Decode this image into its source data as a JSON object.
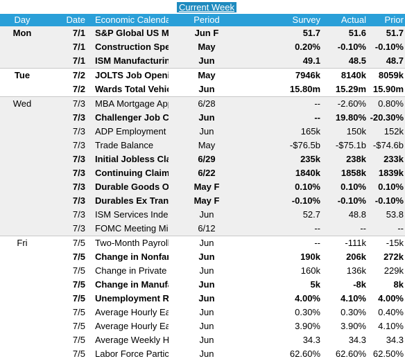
{
  "title": "Current Week",
  "headers": {
    "day": "Day",
    "date": "Date",
    "event": "Economic Calendar (Event)",
    "period": "Period",
    "survey": "Survey",
    "actual": "Actual",
    "prior": "Prior"
  },
  "rows": [
    {
      "day": "Mon",
      "date": "7/1",
      "event": "S&P Global US Manufacturing PMI",
      "period": "Jun F",
      "survey": "51.7",
      "actual": "51.6",
      "prior": "51.7"
    },
    {
      "day": "",
      "date": "7/1",
      "event": "Construction Spending MoM",
      "period": "May",
      "survey": "0.20%",
      "actual": "-0.10%",
      "prior": "-0.10%"
    },
    {
      "day": "",
      "date": "7/1",
      "event": "ISM Manufacturing",
      "period": "Jun",
      "survey": "49.1",
      "actual": "48.5",
      "prior": "48.7"
    },
    {
      "day": "Tue",
      "date": "7/2",
      "event": "JOLTS Job Openings",
      "period": "May",
      "survey": "7946k",
      "actual": "8140k",
      "prior": "8059k"
    },
    {
      "day": "",
      "date": "7/2",
      "event": "Wards Total Vehicle Sales",
      "period": "Jun",
      "survey": "15.80m",
      "actual": "15.29m",
      "prior": "15.90m"
    },
    {
      "day": "Wed",
      "date": "7/3",
      "event": "MBA Mortgage Applications",
      "period": "6/28",
      "survey": "--",
      "actual": "-2.60%",
      "prior": "0.80%"
    },
    {
      "day": "",
      "date": "7/3",
      "event": "Challenger Job Cuts YoY",
      "period": "Jun",
      "survey": "--",
      "actual": "19.80%",
      "prior": "-20.30%"
    },
    {
      "day": "",
      "date": "7/3",
      "event": "ADP Employment Change",
      "period": "Jun",
      "survey": "165k",
      "actual": "150k",
      "prior": "152k"
    },
    {
      "day": "",
      "date": "7/3",
      "event": "Trade Balance",
      "period": "May",
      "survey": "-$76.5b",
      "actual": "-$75.1b",
      "prior": "-$74.6b"
    },
    {
      "day": "",
      "date": "7/3",
      "event": "Initial Jobless Claims",
      "period": "6/29",
      "survey": "235k",
      "actual": "238k",
      "prior": "233k"
    },
    {
      "day": "",
      "date": "7/3",
      "event": "Continuing Claims",
      "period": "6/22",
      "survey": "1840k",
      "actual": "1858k",
      "prior": "1839k"
    },
    {
      "day": "",
      "date": "7/3",
      "event": "Durable Goods Orders",
      "period": "May F",
      "survey": "0.10%",
      "actual": "0.10%",
      "prior": "0.10%"
    },
    {
      "day": "",
      "date": "7/3",
      "event": "Durables Ex Transportation",
      "period": "May F",
      "survey": "-0.10%",
      "actual": "-0.10%",
      "prior": "-0.10%"
    },
    {
      "day": "",
      "date": "7/3",
      "event": "ISM Services Index",
      "period": "Jun",
      "survey": "52.7",
      "actual": "48.8",
      "prior": "53.8"
    },
    {
      "day": "",
      "date": "7/3",
      "event": "FOMC Meeting Minutes",
      "period": "6/12",
      "survey": "--",
      "actual": "--",
      "prior": "--"
    },
    {
      "day": "Fri",
      "date": "7/5",
      "event": "Two-Month Payroll Net Revision",
      "period": "Jun",
      "survey": "--",
      "actual": "-111k",
      "prior": "-15k"
    },
    {
      "day": "",
      "date": "7/5",
      "event": "Change in Nonfarm Payrolls",
      "period": "Jun",
      "survey": "190k",
      "actual": "206k",
      "prior": "272k"
    },
    {
      "day": "",
      "date": "7/5",
      "event": "Change in Private Payrolls",
      "period": "Jun",
      "survey": "160k",
      "actual": "136k",
      "prior": "229k"
    },
    {
      "day": "",
      "date": "7/5",
      "event": "Change in Manufact. Payrolls",
      "period": "Jun",
      "survey": "5k",
      "actual": "-8k",
      "prior": "8k"
    },
    {
      "day": "",
      "date": "7/5",
      "event": "Unemployment Rate",
      "period": "Jun",
      "survey": "4.00%",
      "actual": "4.10%",
      "prior": "4.00%"
    },
    {
      "day": "",
      "date": "7/5",
      "event": "Average Hourly Earnings MoM",
      "period": "Jun",
      "survey": "0.30%",
      "actual": "0.30%",
      "prior": "0.40%"
    },
    {
      "day": "",
      "date": "7/5",
      "event": "Average Hourly Earnings YoY",
      "period": "Jun",
      "survey": "3.90%",
      "actual": "3.90%",
      "prior": "4.10%"
    },
    {
      "day": "",
      "date": "7/5",
      "event": "Average Weekly Hours All",
      "period": "Jun",
      "survey": "34.3",
      "actual": "34.3",
      "prior": "34.3"
    },
    {
      "day": "",
      "date": "7/5",
      "event": "Labor Force Participation Rate",
      "period": "Jun",
      "survey": "62.60%",
      "actual": "62.60%",
      "prior": "62.50%"
    }
  ]
}
